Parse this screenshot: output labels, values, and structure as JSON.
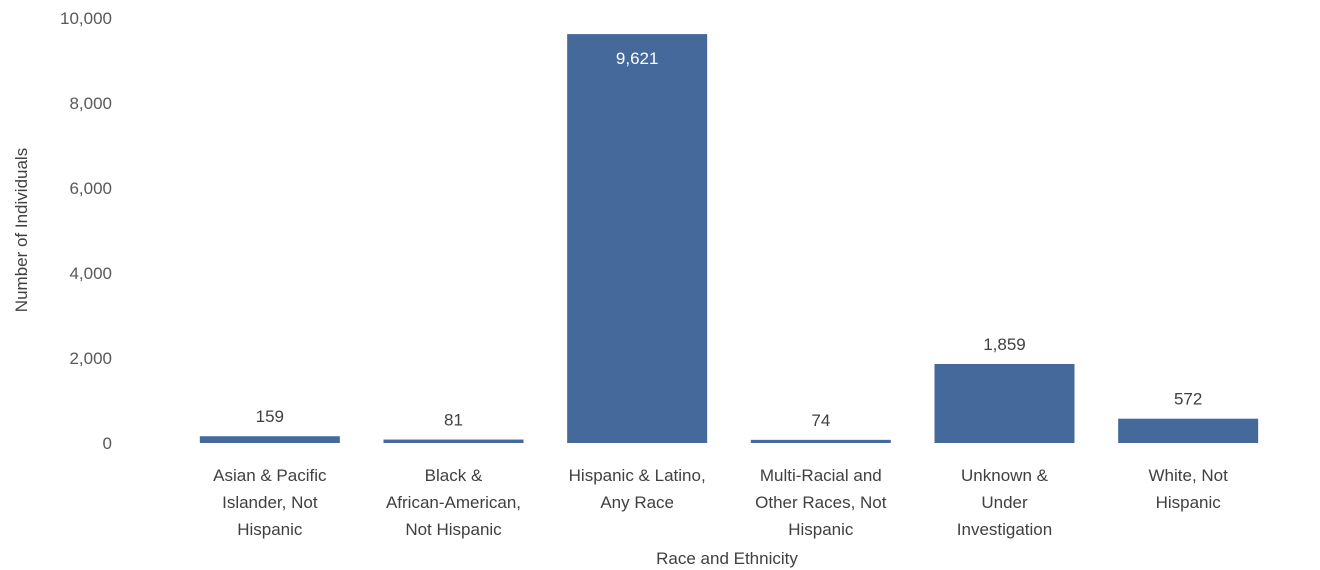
{
  "chart_data": {
    "type": "bar",
    "title": "",
    "xlabel": "Race and Ethnicity",
    "ylabel": "Number of Individuals",
    "ylim": [
      0,
      10000
    ],
    "yticks": [
      0,
      2000,
      4000,
      6000,
      8000,
      10000
    ],
    "ytick_labels": [
      "0",
      "2,000",
      "4,000",
      "6,000",
      "8,000",
      "10,000"
    ],
    "categories": [
      [
        "Asian & Pacific",
        "Islander, Not",
        "Hispanic"
      ],
      [
        "Black &",
        "African-American,",
        "Not Hispanic"
      ],
      [
        "Hispanic & Latino,",
        "Any Race"
      ],
      [
        "Multi-Racial and",
        "Other Races, Not",
        "Hispanic"
      ],
      [
        "Unknown &",
        "Under",
        "Investigation"
      ],
      [
        "White, Not",
        "Hispanic"
      ]
    ],
    "values": [
      159,
      81,
      9621,
      74,
      1859,
      572
    ],
    "data_labels": [
      "159",
      "81",
      "9,621",
      "74",
      "1,859",
      "572"
    ],
    "grid": false,
    "legend": "none",
    "colors": {
      "bar": "#44699A",
      "label_inside": "#ffffff",
      "label_outside": "#404040"
    }
  }
}
